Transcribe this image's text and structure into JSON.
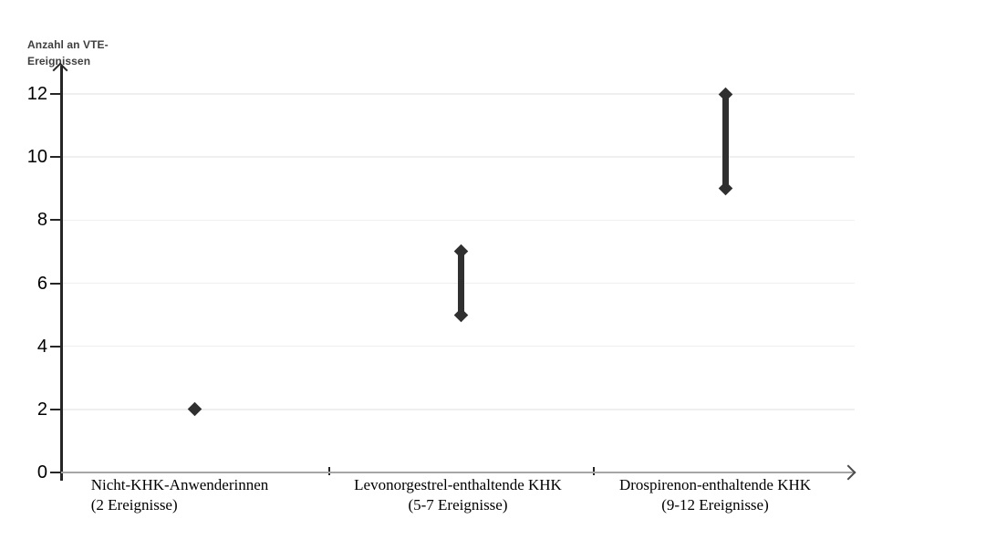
{
  "chart_data": {
    "type": "scatter",
    "variant": "vertical-range-dumbbell",
    "title": "",
    "xlabel": "",
    "ylabel": "Anzahl an VTE-Ereignissen",
    "ylabel_lines": [
      "Anzahl an VTE-",
      "Ereignissen"
    ],
    "yticks": [
      0,
      2,
      4,
      6,
      8,
      10,
      12
    ],
    "ylim": [
      0,
      12.6
    ],
    "grid": "horizontal-light",
    "legend": "none",
    "marker": "diamond",
    "categories": [
      {
        "label": "Nicht-KHK-Anwenderinnen",
        "sublabel": "(2 Ereignisse)",
        "low": 2,
        "high": 2
      },
      {
        "label": "Levonorgestrel-enthaltende KHK",
        "sublabel": "(5-7 Ereignisse)",
        "low": 5,
        "high": 7
      },
      {
        "label": "Drospirenon-enthaltende KHK",
        "sublabel": "(9-12 Ereignisse)",
        "low": 9,
        "high": 12
      }
    ],
    "colors": {
      "marker": "#303030",
      "grid": "#efefef",
      "x_axis": "#a6a6a6",
      "y_axis": "#262626",
      "tick_text": "#000000",
      "ylabel_text": "#3f3f3f"
    }
  }
}
